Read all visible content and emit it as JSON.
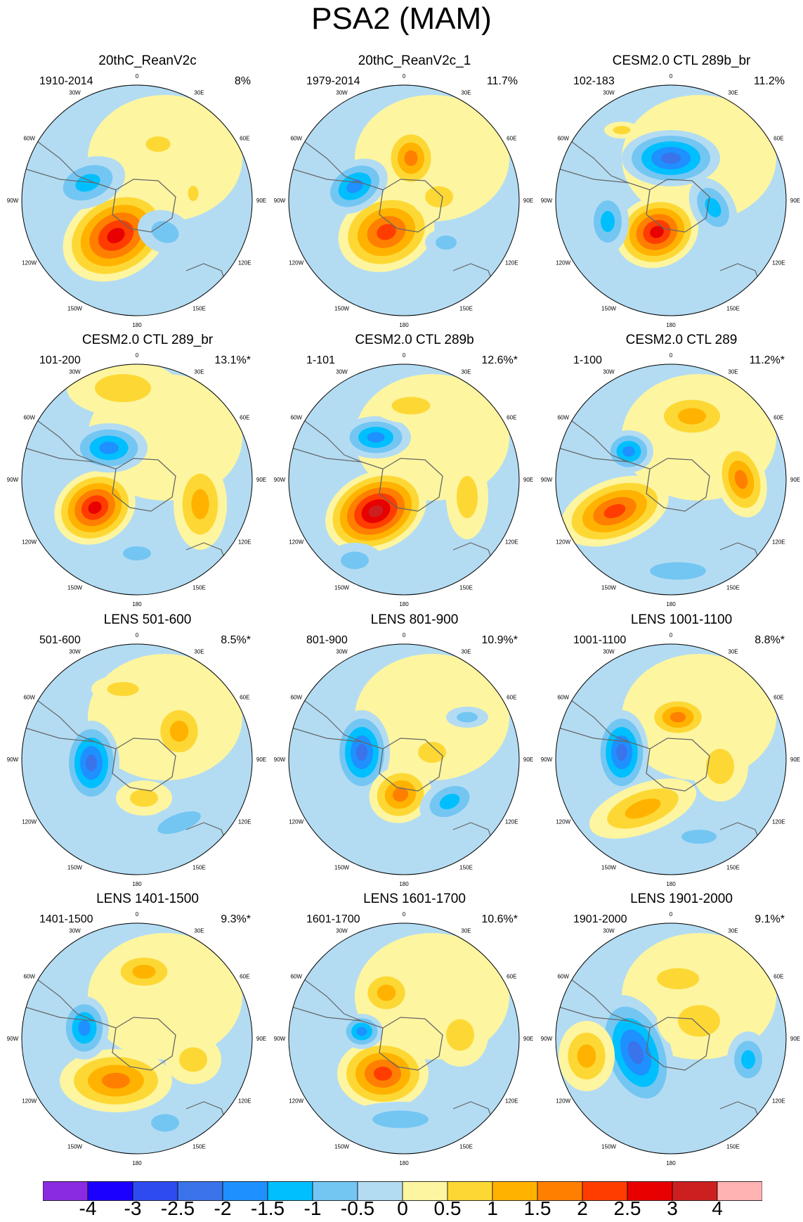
{
  "title": "PSA2 (MAM)",
  "longitude_labels": [
    "0",
    "30E",
    "60E",
    "90E",
    "120E",
    "150E",
    "180",
    "150W",
    "120W",
    "90W",
    "60W",
    "30W"
  ],
  "panels": [
    {
      "title": "20thC_ReanV2c",
      "period": "1910-2014",
      "percent": "8%"
    },
    {
      "title": "20thC_ReanV2c_1",
      "period": "1979-2014",
      "percent": "11.7%"
    },
    {
      "title": "CESM2.0 CTL 289b_br",
      "period": "102-183",
      "percent": "11.2%"
    },
    {
      "title": "CESM2.0 CTL 289_br",
      "period": "101-200",
      "percent": "13.1%*"
    },
    {
      "title": "CESM2.0 CTL 289b",
      "period": "1-101",
      "percent": "12.6%*"
    },
    {
      "title": "CESM2.0 CTL 289",
      "period": "1-100",
      "percent": "11.2%*"
    },
    {
      "title": "LENS 501-600",
      "period": "501-600",
      "percent": "8.5%*"
    },
    {
      "title": "LENS 801-900",
      "period": "801-900",
      "percent": "10.9%*"
    },
    {
      "title": "LENS 1001-1100",
      "period": "1001-1100",
      "percent": "8.8%*"
    },
    {
      "title": "LENS 1401-1500",
      "period": "1401-1500",
      "percent": "9.3%*"
    },
    {
      "title": "LENS 1601-1700",
      "period": "1601-1700",
      "percent": "10.6%*"
    },
    {
      "title": "LENS 1901-2000",
      "period": "1901-2000",
      "percent": "9.1%*"
    }
  ],
  "colorbar": {
    "labels": [
      "-4",
      "-3",
      "-2.5",
      "-2",
      "-1.5",
      "-1",
      "-0.5",
      "0",
      "0.5",
      "1",
      "1.5",
      "2",
      "2.5",
      "3",
      "4"
    ],
    "colors": [
      "#8a2be2",
      "#1c00ff",
      "#2e4bef",
      "#3a73ea",
      "#1e90ff",
      "#00bfff",
      "#74c6f2",
      "#b3dcf3",
      "#fdf5a0",
      "#fdd835",
      "#ffb300",
      "#ff7f00",
      "#ff3d00",
      "#e80000",
      "#cc2020",
      "#ffb3b3"
    ]
  },
  "colors": {
    "land_outline": "#666666",
    "map_border": "#000000"
  }
}
